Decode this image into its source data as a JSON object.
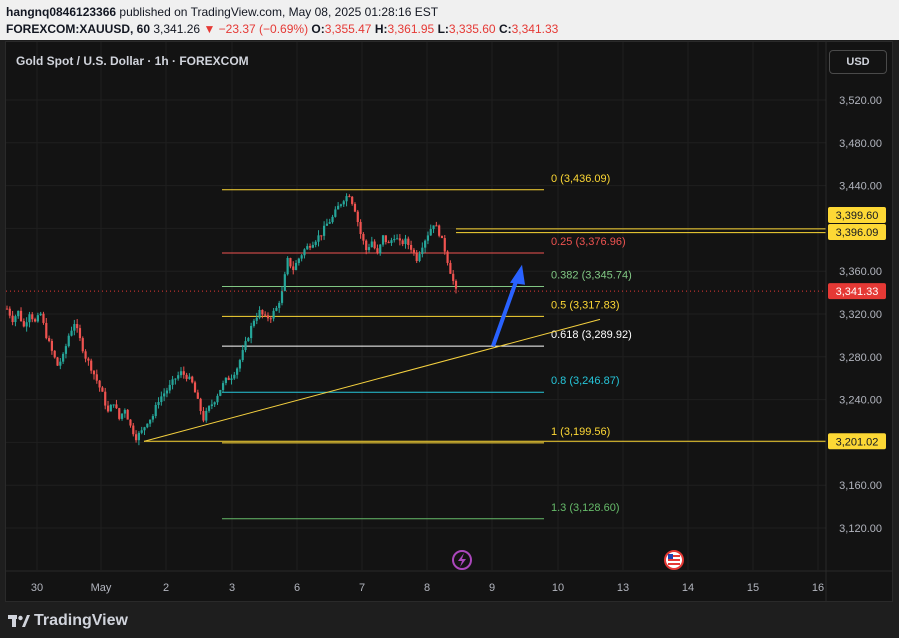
{
  "header": {
    "user": "hangnq0846123366",
    "published_text": "published on TradingView.com, May 08, 2025 01:28:16 EST",
    "symbol": "FOREXCOM:XAUUSD, 60",
    "price": "3,341.26",
    "change_arrow": "▼",
    "change": "−23.37 (−0.69%)",
    "o_label": "O:",
    "o_value": "3,355.47",
    "h_label": "H:",
    "h_value": "3,361.95",
    "l_label": "L:",
    "l_value": "3,335.60",
    "c_label": "C:",
    "c_value": "3,341.33"
  },
  "chart_title": "Gold Spot / U.S. Dollar · 1h · FOREXCOM",
  "currency_button": "USD",
  "footer": {
    "brand": "TradingView"
  },
  "colors": {
    "up": "#26a69a",
    "down": "#ef5350",
    "fib_yellow": "#fdd835",
    "fib_red": "#ef5350",
    "fib_green": "#81c784",
    "fib_white": "#ffffff",
    "fib_cyan": "#26c6da",
    "fib_pale_green": "#66bb6a",
    "trendline": "#f4d03f",
    "arrow": "#2962ff",
    "price_tag": "#e53935",
    "yellow_tag": "#fdd835"
  },
  "chart_data": {
    "type": "candlestick",
    "symbol": "XAUUSD",
    "timeframe": "1h",
    "ylim": [
      3090,
      3560
    ],
    "y_ticks": [
      "3,120.00",
      "3,160.00",
      "3,200.00",
      "3,240.00",
      "3,280.00",
      "3,320.00",
      "3,360.00",
      "3,400.00",
      "3,440.00",
      "3,480.00",
      "3,520.00"
    ],
    "x_ticks": [
      "30",
      "May",
      "2",
      "3",
      "6",
      "7",
      "8",
      "9",
      "10",
      "13",
      "14",
      "15",
      "16"
    ],
    "price_path": [
      [
        0,
        3325
      ],
      [
        2,
        3315
      ],
      [
        4,
        3322
      ],
      [
        6,
        3308
      ],
      [
        8,
        3322
      ],
      [
        10,
        3312
      ],
      [
        12,
        3320
      ],
      [
        14,
        3300
      ],
      [
        16,
        3285
      ],
      [
        18,
        3272
      ],
      [
        20,
        3280
      ],
      [
        22,
        3300
      ],
      [
        24,
        3312
      ],
      [
        26,
        3296
      ],
      [
        28,
        3280
      ],
      [
        30,
        3270
      ],
      [
        32,
        3258
      ],
      [
        34,
        3245
      ],
      [
        36,
        3228
      ],
      [
        38,
        3238
      ],
      [
        40,
        3222
      ],
      [
        42,
        3232
      ],
      [
        44,
        3215
      ],
      [
        46,
        3205
      ],
      [
        48,
        3210
      ],
      [
        50,
        3220
      ],
      [
        52,
        3225
      ],
      [
        54,
        3240
      ],
      [
        56,
        3246
      ],
      [
        58,
        3252
      ],
      [
        60,
        3260
      ],
      [
        62,
        3265
      ],
      [
        64,
        3262
      ],
      [
        66,
        3255
      ],
      [
        68,
        3238
      ],
      [
        70,
        3222
      ],
      [
        72,
        3232
      ],
      [
        74,
        3240
      ],
      [
        76,
        3250
      ],
      [
        78,
        3258
      ],
      [
        80,
        3262
      ],
      [
        82,
        3270
      ],
      [
        84,
        3284
      ],
      [
        86,
        3300
      ],
      [
        88,
        3315
      ],
      [
        90,
        3322
      ],
      [
        92,
        3316
      ],
      [
        94,
        3318
      ],
      [
        96,
        3325
      ],
      [
        98,
        3340
      ],
      [
        100,
        3370
      ],
      [
        102,
        3362
      ],
      [
        104,
        3372
      ],
      [
        106,
        3380
      ],
      [
        108,
        3385
      ],
      [
        110,
        3390
      ],
      [
        112,
        3395
      ],
      [
        114,
        3404
      ],
      [
        116,
        3410
      ],
      [
        118,
        3420
      ],
      [
        120,
        3428
      ],
      [
        122,
        3432
      ],
      [
        124,
        3418
      ],
      [
        126,
        3395
      ],
      [
        128,
        3380
      ],
      [
        130,
        3388
      ],
      [
        132,
        3375
      ],
      [
        134,
        3392
      ],
      [
        136,
        3385
      ],
      [
        138,
        3393
      ],
      [
        140,
        3386
      ],
      [
        142,
        3388
      ],
      [
        144,
        3382
      ],
      [
        146,
        3372
      ],
      [
        148,
        3385
      ],
      [
        150,
        3395
      ],
      [
        152,
        3405
      ],
      [
        154,
        3396
      ],
      [
        156,
        3380
      ],
      [
        158,
        3360
      ],
      [
        160,
        3341
      ]
    ],
    "last_price": "3,341.33",
    "fib_levels": [
      {
        "ratio": "0",
        "price": "3,436.09",
        "value": 3436.09,
        "color": "#fdd835"
      },
      {
        "ratio": "0.25",
        "price": "3,376.96",
        "value": 3376.96,
        "color": "#ef5350"
      },
      {
        "ratio": "0.382",
        "price": "3,345.74",
        "value": 3345.74,
        "color": "#81c784"
      },
      {
        "ratio": "0.5",
        "price": "3,317.83",
        "value": 3317.83,
        "color": "#fdd835"
      },
      {
        "ratio": "0.618",
        "price": "3,289.92",
        "value": 3289.92,
        "color": "#ffffff"
      },
      {
        "ratio": "0.8",
        "price": "3,246.87",
        "value": 3246.87,
        "color": "#26c6da"
      },
      {
        "ratio": "1",
        "price": "3,199.56",
        "value": 3199.56,
        "color": "#fdd835"
      },
      {
        "ratio": "1.3",
        "price": "3,128.60",
        "value": 3128.6,
        "color": "#66bb6a"
      }
    ],
    "right_tags": [
      {
        "label": "3,399.60",
        "value": 3399.6,
        "bg": "#fdd835",
        "fg": "#131722"
      },
      {
        "label": "3,396.09",
        "value": 3396.09,
        "bg": "#fdd835",
        "fg": "#131722"
      },
      {
        "label": "3,341.33",
        "value": 3341.33,
        "bg": "#e53935",
        "fg": "#ffffff"
      },
      {
        "label": "3,201.02",
        "value": 3201.02,
        "bg": "#fdd835",
        "fg": "#131722"
      }
    ],
    "horizontal_lines": [
      3399.6,
      3396.09,
      3201.02
    ],
    "trendline": {
      "from": [
        3201,
        "May 1"
      ],
      "to": [
        3315,
        "May 10"
      ]
    },
    "arrow": {
      "from": [
        3290,
        "May 9"
      ],
      "to": [
        3366,
        "May 9"
      ]
    }
  }
}
